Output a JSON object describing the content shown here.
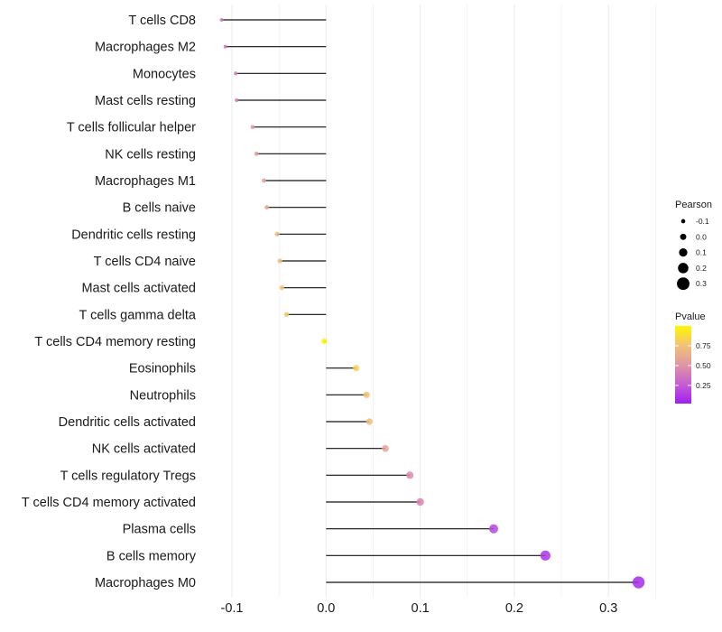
{
  "chart_data": {
    "type": "lollipop",
    "title": "",
    "xlabel": "",
    "ylabel": "",
    "xlim": [
      -0.12,
      0.35
    ],
    "x_ticks": [
      "-0.1",
      "0.0",
      "0.1",
      "0.2",
      "0.3"
    ],
    "x_tick_values": [
      -0.1,
      0,
      0.1,
      0.2,
      0.3
    ],
    "grid": true,
    "categories": [
      "T cells CD8",
      "Macrophages M2",
      "Monocytes",
      "Mast cells resting",
      "T cells follicular helper",
      "NK cells resting",
      "Macrophages M1",
      "B cells naive",
      "Dendritic cells resting",
      "T cells CD4 naive",
      "Mast cells activated",
      "T cells gamma delta",
      "T cells CD4 memory resting",
      "Eosinophils",
      "Neutrophils",
      "Dendritic cells activated",
      "NK cells activated",
      "T cells regulatory  Tregs ",
      "T cells CD4 memory activated",
      "Plasma cells",
      "B cells memory",
      "Macrophages M0"
    ],
    "pearson": [
      -0.111,
      -0.107,
      -0.096,
      -0.095,
      -0.078,
      -0.074,
      -0.066,
      -0.063,
      -0.052,
      -0.049,
      -0.047,
      -0.042,
      -0.002,
      0.032,
      0.043,
      0.046,
      0.063,
      0.089,
      0.1,
      0.178,
      0.233,
      0.332
    ],
    "pvalue": [
      0.36,
      0.36,
      0.4,
      0.4,
      0.5,
      0.52,
      0.58,
      0.6,
      0.7,
      0.72,
      0.75,
      0.78,
      0.99,
      0.82,
      0.74,
      0.72,
      0.58,
      0.45,
      0.42,
      0.15,
      0.08,
      0.04
    ],
    "legend_size": {
      "title": "Pearson",
      "labels": [
        "-0.1",
        "0.0",
        "0.1",
        "0.2",
        "0.3"
      ],
      "values": [
        -0.1,
        0,
        0.1,
        0.2,
        0.3
      ],
      "placement": "right"
    },
    "legend_color": {
      "title": "Pvalue",
      "labels": [
        "0.75",
        "0.50",
        "0.25"
      ],
      "values": [
        0.75,
        0.5,
        0.25
      ],
      "placement": "right"
    },
    "color_scale": [
      "#A020F0",
      "#C65ED2",
      "#E096A4",
      "#F2C277",
      "#FFF700"
    ]
  }
}
